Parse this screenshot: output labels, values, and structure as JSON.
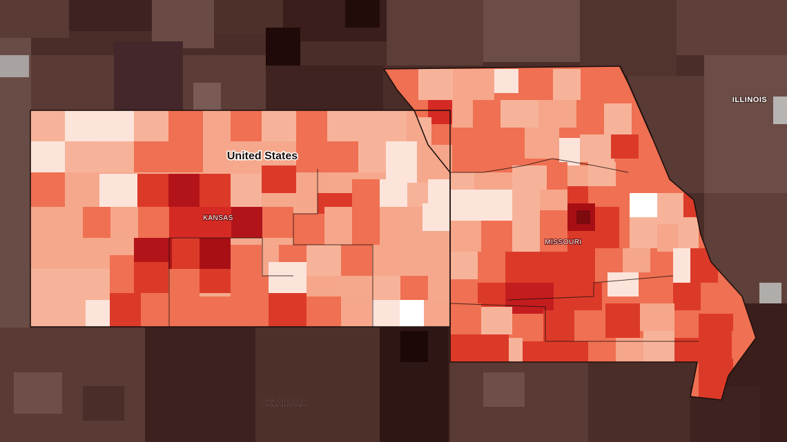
{
  "map": {
    "title": "United States",
    "labels": {
      "kansas": "KANSAS",
      "missouri": "MISSOURI",
      "illinois": "ILLINOIS",
      "oklahoma": "OKLAHOMA"
    },
    "colors": {
      "background_dark": "#4a2c28",
      "kansas_base": "#f5a88c",
      "missouri_base": "#ef7052",
      "light": "#fde4da",
      "medium": "#f7b39a",
      "strong": "#e2452c",
      "deep": "#a80f15",
      "darkest": "#7d0a0e",
      "border": "#1e100e"
    }
  }
}
